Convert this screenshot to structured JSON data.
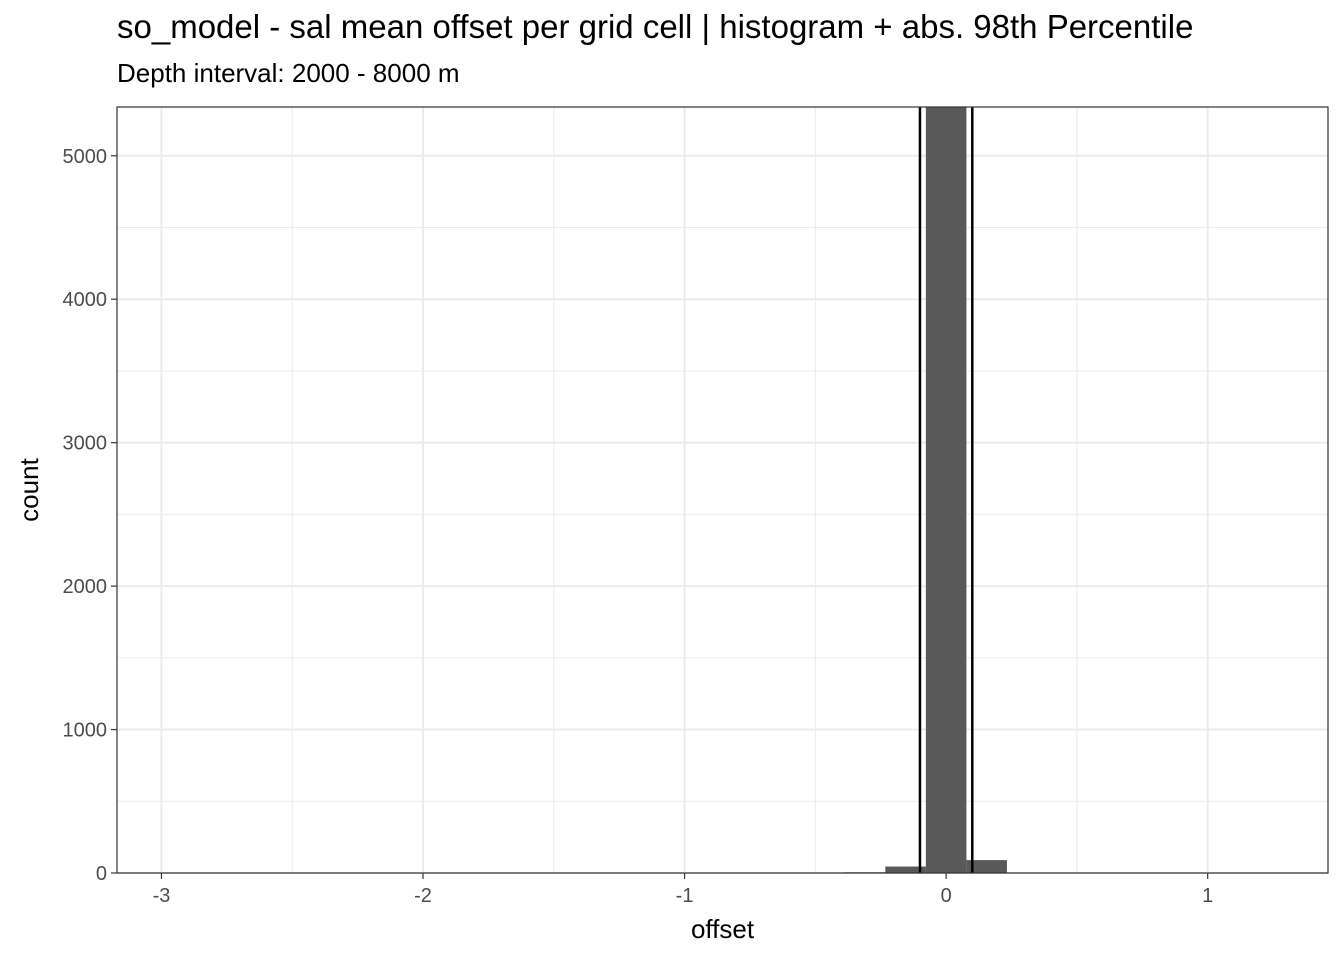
{
  "title": "so_model  -  sal mean offset per grid cell | histogram + abs. 98th Percentile",
  "subtitle": "Depth interval: 2000 - 8000 m",
  "chart_data": {
    "type": "bar",
    "xlabel": "offset",
    "ylabel": "count",
    "xlim": [
      -3.17,
      1.46
    ],
    "ylim": [
      0,
      5340
    ],
    "x_ticks": [
      -3,
      -2,
      -1,
      0,
      1
    ],
    "x_tick_labels": [
      "-3",
      "-2",
      "-1",
      "0",
      "1"
    ],
    "y_ticks": [
      0,
      1000,
      2000,
      3000,
      4000,
      5000
    ],
    "y_tick_labels": [
      "0",
      "1000",
      "2000",
      "3000",
      "4000",
      "5000"
    ],
    "grid": true,
    "bin_width": 0.155,
    "bins": [
      {
        "center": -0.31,
        "count": 5
      },
      {
        "center": -0.155,
        "count": 45
      },
      {
        "center": 0.0,
        "count": 5340
      },
      {
        "center": 0.155,
        "count": 90
      }
    ],
    "bar_color": "#595959",
    "vlines": [
      -0.1,
      0.1
    ],
    "vline_color": "#000000"
  }
}
